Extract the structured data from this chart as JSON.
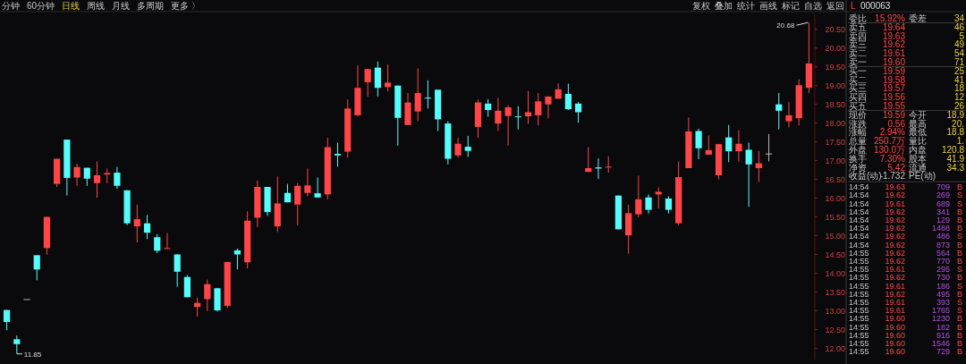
{
  "chart_data": {
    "type": "candlestick",
    "categories": [
      null,
      null,
      null,
      null,
      null,
      null,
      null,
      null,
      null,
      null,
      null,
      null,
      null,
      null,
      null,
      null,
      null,
      null,
      null,
      null,
      null,
      null,
      null,
      null,
      null,
      null,
      null,
      null,
      null,
      null,
      null,
      null,
      null,
      null,
      null,
      null,
      null,
      null,
      null,
      null,
      null,
      null,
      null,
      null,
      null,
      null,
      null,
      null,
      null,
      null,
      null,
      null,
      null,
      null,
      null,
      null,
      null,
      null,
      null,
      null,
      null,
      null,
      null,
      null,
      null,
      null,
      null,
      null,
      null,
      null,
      null,
      null,
      null,
      null,
      null,
      null,
      null,
      null,
      null,
      null,
      null
    ],
    "ohlc": [
      [
        13.02,
        13.02,
        12.48,
        12.7
      ],
      [
        12.24,
        12.34,
        11.85,
        12.11
      ],
      [
        13.31,
        13.31,
        13.31,
        13.31
      ],
      [
        14.48,
        14.48,
        13.81,
        14.1
      ],
      [
        14.67,
        15.5,
        14.5,
        15.5
      ],
      [
        16.38,
        17.05,
        16.3,
        17.05
      ],
      [
        17.56,
        17.56,
        16.07,
        16.54
      ],
      [
        16.55,
        16.92,
        16.33,
        16.83
      ],
      [
        16.81,
        16.81,
        16.33,
        16.52
      ],
      [
        16.4,
        16.98,
        16.01,
        16.61
      ],
      [
        16.63,
        16.79,
        16.4,
        16.67
      ],
      [
        16.68,
        16.83,
        16.25,
        16.33
      ],
      [
        16.21,
        16.21,
        15.28,
        15.33
      ],
      [
        15.25,
        15.83,
        14.82,
        15.44
      ],
      [
        15.33,
        15.55,
        14.91,
        15.08
      ],
      [
        14.96,
        15.04,
        14.54,
        14.6
      ],
      [
        14.65,
        15.07,
        14.65,
        14.67
      ],
      [
        14.5,
        14.5,
        13.64,
        14.04
      ],
      [
        13.9,
        13.95,
        13.36,
        13.36
      ],
      [
        13.1,
        13.35,
        12.85,
        13.21
      ],
      [
        13.31,
        13.83,
        12.99,
        13.71
      ],
      [
        13.6,
        13.6,
        12.98,
        13.01
      ],
      [
        13.13,
        14.3,
        13.07,
        14.3
      ],
      [
        14.61,
        14.66,
        14.1,
        14.5
      ],
      [
        14.29,
        15.65,
        14.13,
        15.4
      ],
      [
        15.48,
        16.47,
        15.23,
        16.3
      ],
      [
        16.3,
        16.3,
        15.53,
        15.63
      ],
      [
        15.25,
        16.58,
        15.1,
        15.86
      ],
      [
        16.14,
        16.38,
        15.89,
        15.89
      ],
      [
        15.83,
        16.4,
        15.28,
        16.33
      ],
      [
        16.14,
        16.79,
        16.05,
        16.34
      ],
      [
        16.13,
        16.55,
        16.01,
        16.02
      ],
      [
        16.1,
        17.61,
        15.97,
        17.36
      ],
      [
        17.18,
        17.48,
        16.84,
        17.14
      ],
      [
        17.24,
        18.63,
        17.08,
        18.39
      ],
      [
        18.21,
        19.54,
        18.19,
        18.94
      ],
      [
        19.09,
        19.44,
        18.71,
        19.44
      ],
      [
        19.48,
        19.64,
        18.71,
        18.94
      ],
      [
        18.96,
        19.56,
        18.85,
        19.08
      ],
      [
        19.0,
        19.0,
        17.4,
        18.14
      ],
      [
        17.95,
        18.8,
        17.95,
        18.55
      ],
      [
        18.31,
        19.46,
        18.05,
        18.8
      ],
      [
        18.68,
        19.14,
        18.39,
        18.68
      ],
      [
        18.89,
        18.89,
        17.79,
        18.1
      ],
      [
        17.99,
        18.05,
        16.9,
        17.05
      ],
      [
        17.14,
        17.61,
        17.08,
        17.45
      ],
      [
        17.37,
        17.66,
        17.1,
        17.26
      ],
      [
        17.9,
        18.63,
        17.61,
        18.55
      ],
      [
        18.52,
        18.64,
        18.17,
        18.35
      ],
      [
        17.99,
        18.67,
        17.79,
        18.33
      ],
      [
        18.19,
        18.48,
        17.4,
        18.42
      ],
      [
        18.18,
        18.45,
        17.83,
        18.18
      ],
      [
        18.18,
        18.86,
        17.98,
        18.29
      ],
      [
        18.21,
        18.8,
        17.94,
        18.58
      ],
      [
        18.5,
        18.71,
        18.13,
        18.71
      ],
      [
        18.65,
        19.06,
        18.65,
        18.9
      ],
      [
        18.78,
        19.05,
        18.35,
        18.37
      ],
      [
        18.52,
        18.56,
        18.01,
        18.29
      ],
      [
        16.7,
        17.36,
        16.7,
        16.8
      ],
      [
        16.82,
        17.06,
        16.51,
        16.79
      ],
      [
        16.82,
        17.12,
        16.68,
        16.84
      ],
      [
        16.07,
        16.07,
        15.17,
        15.17
      ],
      [
        15.01,
        15.83,
        14.52,
        15.6
      ],
      [
        15.57,
        16.6,
        15.49,
        15.97
      ],
      [
        16.02,
        16.1,
        15.59,
        15.69
      ],
      [
        16.1,
        16.29,
        15.73,
        16.17
      ],
      [
        15.99,
        16.05,
        15.59,
        15.69
      ],
      [
        15.33,
        16.98,
        15.28,
        16.56
      ],
      [
        16.8,
        18.15,
        16.8,
        17.78
      ],
      [
        17.79,
        17.85,
        17.04,
        17.33
      ],
      [
        17.16,
        17.67,
        17.16,
        17.28
      ],
      [
        16.61,
        17.44,
        16.5,
        17.44
      ],
      [
        17.62,
        17.95,
        16.96,
        17.25
      ],
      [
        17.25,
        17.81,
        16.98,
        17.45
      ],
      [
        17.29,
        17.48,
        15.77,
        16.9
      ],
      [
        16.8,
        17.26,
        16.43,
        16.93
      ],
      [
        17.19,
        17.71,
        16.98,
        17.19
      ],
      [
        18.5,
        18.8,
        17.83,
        18.33
      ],
      [
        18.05,
        18.56,
        17.89,
        18.21
      ],
      [
        18.13,
        19.17,
        17.94,
        19.01
      ],
      [
        18.94,
        20.68,
        18.8,
        19.59
      ]
    ],
    "colors": [
      "#54fcfc",
      "#54fcfc",
      "#bbbbbb",
      "#54fcfc",
      "#ff4545",
      "#ff4545",
      "#54fcfc",
      "#ff4545",
      "#54fcfc",
      "#ff4545",
      "#ff4545",
      "#54fcfc",
      "#54fcfc",
      "#ff4545",
      "#54fcfc",
      "#54fcfc",
      "#ff4545",
      "#54fcfc",
      "#54fcfc",
      "#ff4545",
      "#ff4545",
      "#54fcfc",
      "#ff4545",
      "#54fcfc",
      "#ff4545",
      "#ff4545",
      "#54fcfc",
      "#ff4545",
      "#54fcfc",
      "#ff4545",
      "#ff4545",
      "#54fcfc",
      "#ff4545",
      "#54fcfc",
      "#ff4545",
      "#ff4545",
      "#ff4545",
      "#54fcfc",
      "#ff4545",
      "#54fcfc",
      "#ff4545",
      "#ff4545",
      "#54fcfc",
      "#54fcfc",
      "#54fcfc",
      "#ff4545",
      "#54fcfc",
      "#ff4545",
      "#54fcfc",
      "#ff4545",
      "#ff4545",
      "#54fcfc",
      "#ff4545",
      "#ff4545",
      "#ff4545",
      "#ff4545",
      "#54fcfc",
      "#54fcfc",
      "#ff4545",
      "#54fcfc",
      "#ff4545",
      "#54fcfc",
      "#ff4545",
      "#ff4545",
      "#54fcfc",
      "#ff4545",
      "#54fcfc",
      "#ff4545",
      "#ff4545",
      "#54fcfc",
      "#ff4545",
      "#ff4545",
      "#54fcfc",
      "#ff4545",
      "#54fcfc",
      "#ff4545",
      "#bbbbbb",
      "#54fcfc",
      "#ff4545",
      "#ff4545",
      "#ff4545"
    ],
    "ylim": [
      11.7,
      20.9
    ],
    "yticks": [
      {
        "value": 12,
        "label": "12.00"
      },
      {
        "value": 12.5,
        "label": "12.50"
      },
      {
        "value": 13,
        "label": "13.00"
      },
      {
        "value": 13.5,
        "label": "13.50"
      },
      {
        "value": 14,
        "label": "14.00"
      },
      {
        "value": 14.5,
        "label": "14.50"
      },
      {
        "value": 15,
        "label": "15.00"
      },
      {
        "value": 15.5,
        "label": "15.50"
      },
      {
        "value": 16,
        "label": "16.00"
      },
      {
        "value": 16.5,
        "label": "16.50"
      },
      {
        "value": 17,
        "label": "17.00"
      },
      {
        "value": 17.5,
        "label": "17.50"
      },
      {
        "value": 18,
        "label": "18.00"
      },
      {
        "value": 18.5,
        "label": "18.50"
      },
      {
        "value": 19,
        "label": "19.00"
      },
      {
        "value": 19.5,
        "label": "19.50"
      },
      {
        "value": 20,
        "label": "20.00"
      },
      {
        "value": 20.5,
        "label": "20.50"
      }
    ],
    "grid": false,
    "annotations": [
      "20.68",
      "11.85",
      "分钟",
      "60分钟",
      "日线",
      "周线",
      "月线",
      "多周期",
      "更多 〉",
      "复权",
      "叠加",
      "统计",
      "画线",
      "标记",
      "自选",
      "返回",
      "L",
      "000063",
      "委比",
      "15.92%",
      "委差",
      "34",
      "卖五",
      "19.64",
      "46",
      "卖四",
      "19.63",
      "5",
      "卖三",
      "19.62",
      "49",
      "卖二",
      "19.61",
      "54",
      "卖一",
      "19.60",
      "71",
      "买一",
      "19.59",
      "25",
      "买二",
      "19.58",
      "41",
      "买三",
      "19.57",
      "18",
      "买四",
      "19.56",
      "12",
      "买五",
      "19.55",
      "26",
      "现价",
      "19.59",
      "今开",
      "18.9",
      "涨跌",
      "0.56",
      "最高",
      "20.",
      "涨幅",
      "2.94%",
      "最低",
      "18.8",
      "总量",
      "250.7万",
      "量比",
      "1.",
      "外盘",
      "130.0万",
      "内盘",
      "120.8",
      "换手",
      "7.30%",
      "股本",
      "41.9",
      "净资",
      "5.42",
      "流通",
      "34.3",
      "收益(动)",
      "-1.732",
      "PE(动)",
      "14:54",
      "19.63",
      "709",
      "B",
      "14:54",
      "19.62",
      "269",
      "S",
      "14:54",
      "19.61",
      "689",
      "S",
      "14:54",
      "19.62",
      "341",
      "B",
      "14:54",
      "19.62",
      "129",
      "B",
      "14:54",
      "19.62",
      "1488",
      "B",
      "14:54",
      "19.62",
      "486",
      "S",
      "14:54",
      "19.62",
      "873",
      "B",
      "14:55",
      "19.62",
      "564",
      "B",
      "14:55",
      "19.62",
      "770",
      "B",
      "14:55",
      "19.61",
      "295",
      "S",
      "14:55",
      "19.62",
      "730",
      "B",
      "14:55",
      "19.61",
      "186",
      "S",
      "14:55",
      "19.62",
      "495",
      "B",
      "14:55",
      "19.61",
      "393",
      "S",
      "14:55",
      "19.61",
      "1765",
      "S",
      "14:55",
      "19.60",
      "1230",
      "B",
      "14:55",
      "19.60",
      "182",
      "B",
      "14:55",
      "19.60",
      "916",
      "B",
      "14:55",
      "19.60",
      "1546",
      "B",
      "14:55",
      "19.60",
      "729",
      "B"
    ]
  }
}
